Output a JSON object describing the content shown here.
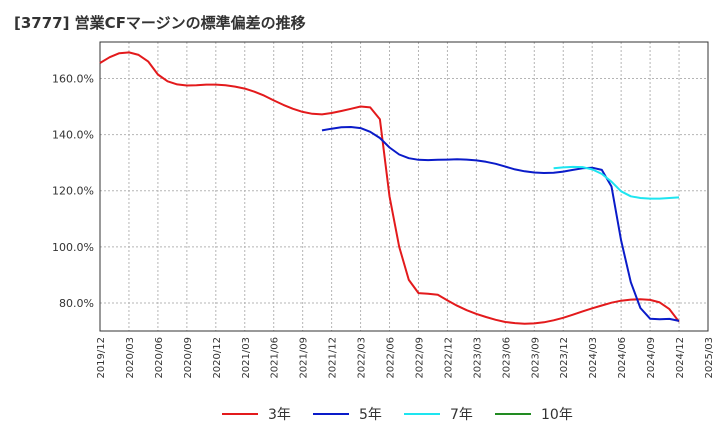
{
  "chart_data": {
    "type": "line",
    "title": "[3777]  営業CFマージンの標準偏差の推移",
    "xlabel": "",
    "ylabel": "",
    "ylim": [
      70,
      173
    ],
    "y_ticks": [
      80,
      100,
      120,
      140,
      160
    ],
    "y_tick_labels": [
      "80.0%",
      "100.0%",
      "120.0%",
      "140.0%",
      "160.0%"
    ],
    "x_range": [
      "2019-12",
      "2025-03"
    ],
    "x_tick_labels": [
      "2019/12",
      "2020/03",
      "2020/06",
      "2020/09",
      "2020/12",
      "2021/03",
      "2021/06",
      "2021/09",
      "2021/12",
      "2022/03",
      "2022/06",
      "2022/09",
      "2022/12",
      "2023/03",
      "2023/06",
      "2023/09",
      "2023/12",
      "2024/03",
      "2024/06",
      "2024/09",
      "2024/12",
      "2025/03"
    ],
    "grid": true,
    "legend_position": "bottom",
    "series": [
      {
        "name": "3年",
        "color": "#e31a1c",
        "points": [
          [
            "2019-12",
            165.5
          ],
          [
            "2020-01",
            167.6
          ],
          [
            "2020-02",
            169.0
          ],
          [
            "2020-03",
            169.3
          ],
          [
            "2020-04",
            168.4
          ],
          [
            "2020-05",
            166.0
          ],
          [
            "2020-06",
            161.4
          ],
          [
            "2020-07",
            159.0
          ],
          [
            "2020-08",
            157.9
          ],
          [
            "2020-09",
            157.5
          ],
          [
            "2020-10",
            157.6
          ],
          [
            "2020-11",
            157.8
          ],
          [
            "2020-12",
            157.8
          ],
          [
            "2021-01",
            157.6
          ],
          [
            "2021-02",
            157.1
          ],
          [
            "2021-03",
            156.4
          ],
          [
            "2021-04",
            155.3
          ],
          [
            "2021-05",
            153.9
          ],
          [
            "2021-06",
            152.2
          ],
          [
            "2021-07",
            150.6
          ],
          [
            "2021-08",
            149.2
          ],
          [
            "2021-09",
            148.1
          ],
          [
            "2021-10",
            147.4
          ],
          [
            "2021-11",
            147.2
          ],
          [
            "2021-12",
            147.7
          ],
          [
            "2022-01",
            148.4
          ],
          [
            "2022-02",
            149.2
          ],
          [
            "2022-03",
            150.0
          ],
          [
            "2022-04",
            149.7
          ],
          [
            "2022-05",
            145.5
          ],
          [
            "2022-06",
            118.0
          ],
          [
            "2022-07",
            100.0
          ],
          [
            "2022-08",
            88.2
          ],
          [
            "2022-09",
            83.5
          ],
          [
            "2022-10",
            83.3
          ],
          [
            "2022-11",
            82.9
          ],
          [
            "2022-12",
            80.9
          ],
          [
            "2023-01",
            79.0
          ],
          [
            "2023-02",
            77.4
          ],
          [
            "2023-03",
            76.1
          ],
          [
            "2023-04",
            75.0
          ],
          [
            "2023-05",
            74.0
          ],
          [
            "2023-06",
            73.2
          ],
          [
            "2023-07",
            72.8
          ],
          [
            "2023-08",
            72.6
          ],
          [
            "2023-09",
            72.7
          ],
          [
            "2023-10",
            73.1
          ],
          [
            "2023-11",
            73.8
          ],
          [
            "2023-12",
            74.7
          ],
          [
            "2024-01",
            75.8
          ],
          [
            "2024-02",
            77.0
          ],
          [
            "2024-03",
            78.1
          ],
          [
            "2024-04",
            79.1
          ],
          [
            "2024-05",
            80.1
          ],
          [
            "2024-06",
            80.8
          ],
          [
            "2024-07",
            81.2
          ],
          [
            "2024-08",
            81.3
          ],
          [
            "2024-09",
            81.1
          ],
          [
            "2024-10",
            80.2
          ],
          [
            "2024-11",
            77.8
          ],
          [
            "2024-12",
            73.3
          ]
        ]
      },
      {
        "name": "5年",
        "color": "#0a1bc9",
        "points": [
          [
            "2021-11",
            141.5
          ],
          [
            "2021-12",
            142.1
          ],
          [
            "2022-01",
            142.6
          ],
          [
            "2022-02",
            142.7
          ],
          [
            "2022-03",
            142.3
          ],
          [
            "2022-04",
            141.0
          ],
          [
            "2022-05",
            138.8
          ],
          [
            "2022-06",
            135.4
          ],
          [
            "2022-07",
            132.9
          ],
          [
            "2022-08",
            131.6
          ],
          [
            "2022-09",
            131.0
          ],
          [
            "2022-10",
            130.9
          ],
          [
            "2022-11",
            131.0
          ],
          [
            "2022-12",
            131.1
          ],
          [
            "2023-01",
            131.2
          ],
          [
            "2023-02",
            131.1
          ],
          [
            "2023-03",
            130.8
          ],
          [
            "2023-04",
            130.3
          ],
          [
            "2023-05",
            129.6
          ],
          [
            "2023-06",
            128.6
          ],
          [
            "2023-07",
            127.6
          ],
          [
            "2023-08",
            126.9
          ],
          [
            "2023-09",
            126.5
          ],
          [
            "2023-10",
            126.3
          ],
          [
            "2023-11",
            126.4
          ],
          [
            "2023-12",
            126.8
          ],
          [
            "2024-01",
            127.4
          ],
          [
            "2024-02",
            128.0
          ],
          [
            "2024-03",
            128.2
          ],
          [
            "2024-04",
            127.4
          ],
          [
            "2024-05",
            121.5
          ],
          [
            "2024-06",
            102.3
          ],
          [
            "2024-07",
            87.4
          ],
          [
            "2024-08",
            78.2
          ],
          [
            "2024-09",
            74.4
          ],
          [
            "2024-10",
            74.2
          ],
          [
            "2024-11",
            74.3
          ],
          [
            "2024-12",
            73.6
          ]
        ]
      },
      {
        "name": "7年",
        "color": "#1ee5f0",
        "points": [
          [
            "2023-11",
            128.0
          ],
          [
            "2023-12",
            128.3
          ],
          [
            "2024-01",
            128.5
          ],
          [
            "2024-02",
            128.4
          ],
          [
            "2024-03",
            127.6
          ],
          [
            "2024-04",
            126.0
          ],
          [
            "2024-05",
            123.2
          ],
          [
            "2024-06",
            119.8
          ],
          [
            "2024-07",
            118.0
          ],
          [
            "2024-08",
            117.4
          ],
          [
            "2024-09",
            117.2
          ],
          [
            "2024-10",
            117.2
          ],
          [
            "2024-11",
            117.4
          ],
          [
            "2024-12",
            117.6
          ]
        ]
      },
      {
        "name": "10年",
        "color": "#228b22",
        "points": []
      }
    ]
  }
}
